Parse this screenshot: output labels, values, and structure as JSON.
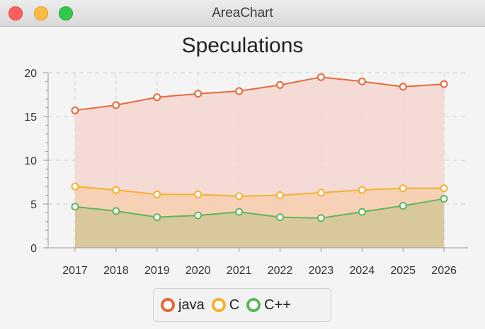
{
  "window": {
    "title": "AreaChart"
  },
  "chart_data": {
    "type": "area",
    "title": "Speculations",
    "xlabel": "",
    "ylabel": "",
    "categories": [
      "2017",
      "2018",
      "2019",
      "2020",
      "2021",
      "2022",
      "2023",
      "2024",
      "2025",
      "2026"
    ],
    "ylim": [
      0,
      20
    ],
    "yticks": [
      0,
      5,
      10,
      15,
      20
    ],
    "grid": true,
    "legend_position": "bottom",
    "series": [
      {
        "name": "java",
        "color": "#e8683a",
        "fill": "#f4d6cf",
        "values": [
          15.7,
          16.3,
          17.2,
          17.6,
          17.9,
          18.6,
          19.5,
          19.0,
          18.4,
          18.7
        ]
      },
      {
        "name": "C",
        "color": "#f6b02e",
        "fill": "#f6cfaf",
        "values": [
          7.0,
          6.6,
          6.1,
          6.1,
          5.9,
          6.0,
          6.3,
          6.6,
          6.8,
          6.8
        ]
      },
      {
        "name": "C++",
        "color": "#5fb75a",
        "fill": "#d3c796",
        "values": [
          4.7,
          4.2,
          3.5,
          3.7,
          4.1,
          3.5,
          3.4,
          4.1,
          4.8,
          5.6
        ]
      }
    ]
  }
}
